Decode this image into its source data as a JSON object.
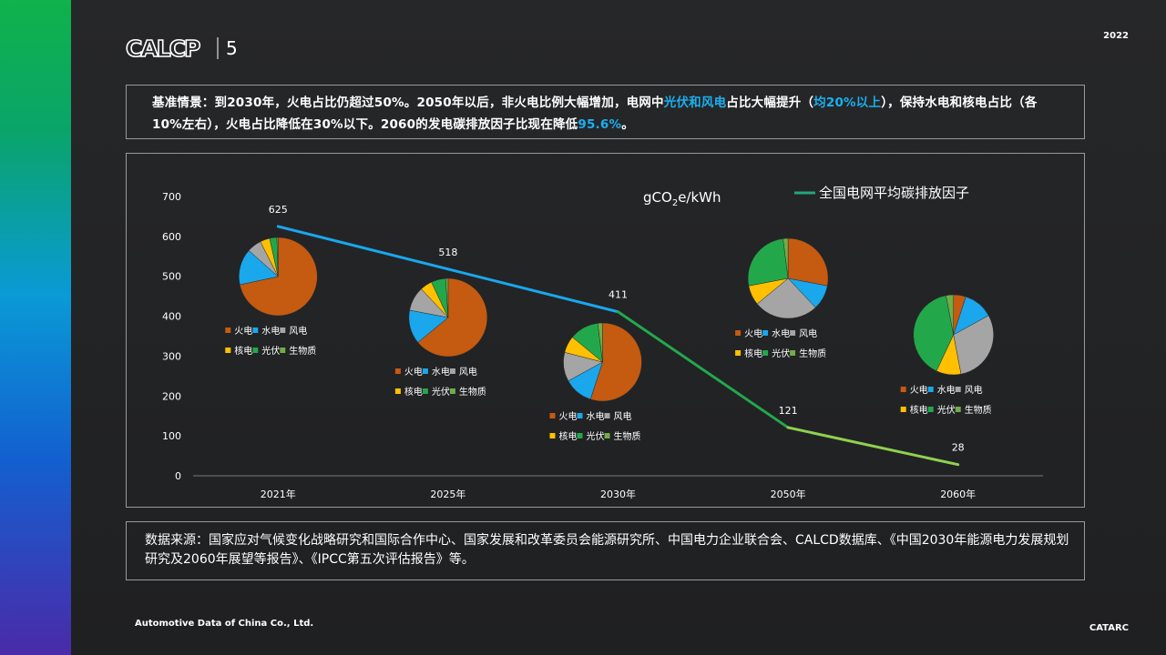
{
  "header": {
    "logo_text": "CALCP",
    "logo_number": "5",
    "year": "2022"
  },
  "summary": {
    "parts": [
      {
        "text": "基准情景：到2030年，火电占比仍超过50%。2050年以后，非火电比例大幅增加，电网中",
        "highlight": false
      },
      {
        "text": "光伏和风电",
        "highlight": true
      },
      {
        "text": "占比大幅提升（",
        "highlight": false
      },
      {
        "text": "均20%以上",
        "highlight": true
      },
      {
        "text": "），保持水电和核电占比（各10%左右），火电占比降低在30%以下。2060的发电碳排放因子比现在降低",
        "highlight": false
      },
      {
        "text": "95.6%",
        "highlight": true
      },
      {
        "text": "。",
        "highlight": false
      }
    ],
    "highlight_color": "#1ab0f0"
  },
  "chart_data": {
    "type": "line",
    "title": "",
    "unit_label": "gCO2e/kWh",
    "xlabel": "",
    "ylabel": "",
    "ylim": [
      0,
      700
    ],
    "yticks": [
      0,
      100,
      200,
      300,
      400,
      500,
      600,
      700
    ],
    "categories": [
      "2021年",
      "2025年",
      "2030年",
      "2050年",
      "2060年"
    ],
    "grid": false,
    "legend_position": "top-right",
    "series": [
      {
        "name": "全国电网平均碳排放因子",
        "values": [
          625,
          518,
          411,
          121,
          28
        ],
        "show_labels": true
      }
    ],
    "pie_legend_labels": [
      "火电",
      "水电",
      "风电",
      "核电",
      "光伏",
      "生物质"
    ],
    "pie_colors": [
      "#c55a11",
      "#1aa7ec",
      "#a5a5a5",
      "#ffc000",
      "#22a84b",
      "#70ad47"
    ],
    "pies": [
      {
        "category": "2021年",
        "slices": [
          {
            "name": "火电",
            "value": 72
          },
          {
            "name": "水电",
            "value": 15
          },
          {
            "name": "风电",
            "value": 6
          },
          {
            "name": "核电",
            "value": 4
          },
          {
            "name": "光伏",
            "value": 3
          },
          {
            "name": "生物质",
            "value": 0.5
          }
        ]
      },
      {
        "category": "2025年",
        "slices": [
          {
            "name": "火电",
            "value": 64
          },
          {
            "name": "水电",
            "value": 14
          },
          {
            "name": "风电",
            "value": 10
          },
          {
            "name": "核电",
            "value": 5
          },
          {
            "name": "光伏",
            "value": 6
          },
          {
            "name": "生物质",
            "value": 1
          }
        ]
      },
      {
        "category": "2030年",
        "slices": [
          {
            "name": "火电",
            "value": 55
          },
          {
            "name": "水电",
            "value": 12
          },
          {
            "name": "风电",
            "value": 12
          },
          {
            "name": "核电",
            "value": 7
          },
          {
            "name": "光伏",
            "value": 12
          },
          {
            "name": "生物质",
            "value": 2
          }
        ]
      },
      {
        "category": "2050年",
        "slices": [
          {
            "name": "火电",
            "value": 28
          },
          {
            "name": "水电",
            "value": 10
          },
          {
            "name": "风电",
            "value": 26
          },
          {
            "name": "核电",
            "value": 8
          },
          {
            "name": "光伏",
            "value": 26
          },
          {
            "name": "生物质",
            "value": 2
          }
        ]
      },
      {
        "category": "2060年",
        "slices": [
          {
            "name": "火电",
            "value": 5
          },
          {
            "name": "水电",
            "value": 12
          },
          {
            "name": "风电",
            "value": 30
          },
          {
            "name": "核电",
            "value": 10
          },
          {
            "name": "光伏",
            "value": 40
          },
          {
            "name": "生物质",
            "value": 3
          }
        ]
      }
    ],
    "line_colors": [
      "#1aa7ec",
      "#22a84b",
      "#8fd14f"
    ]
  },
  "source": {
    "text": "数据来源：国家应对气候变化战略研究和国际合作中心、国家发展和改革委员会能源研究所、中国电力企业联合会、CALCD数据库、《中国2030年能源电力发展规划研究及2060年展望等报告》、《IPCC第五次评估报告》等。"
  },
  "footer": {
    "left": "Automotive Data of China Co., Ltd.",
    "right": "CATARC"
  }
}
